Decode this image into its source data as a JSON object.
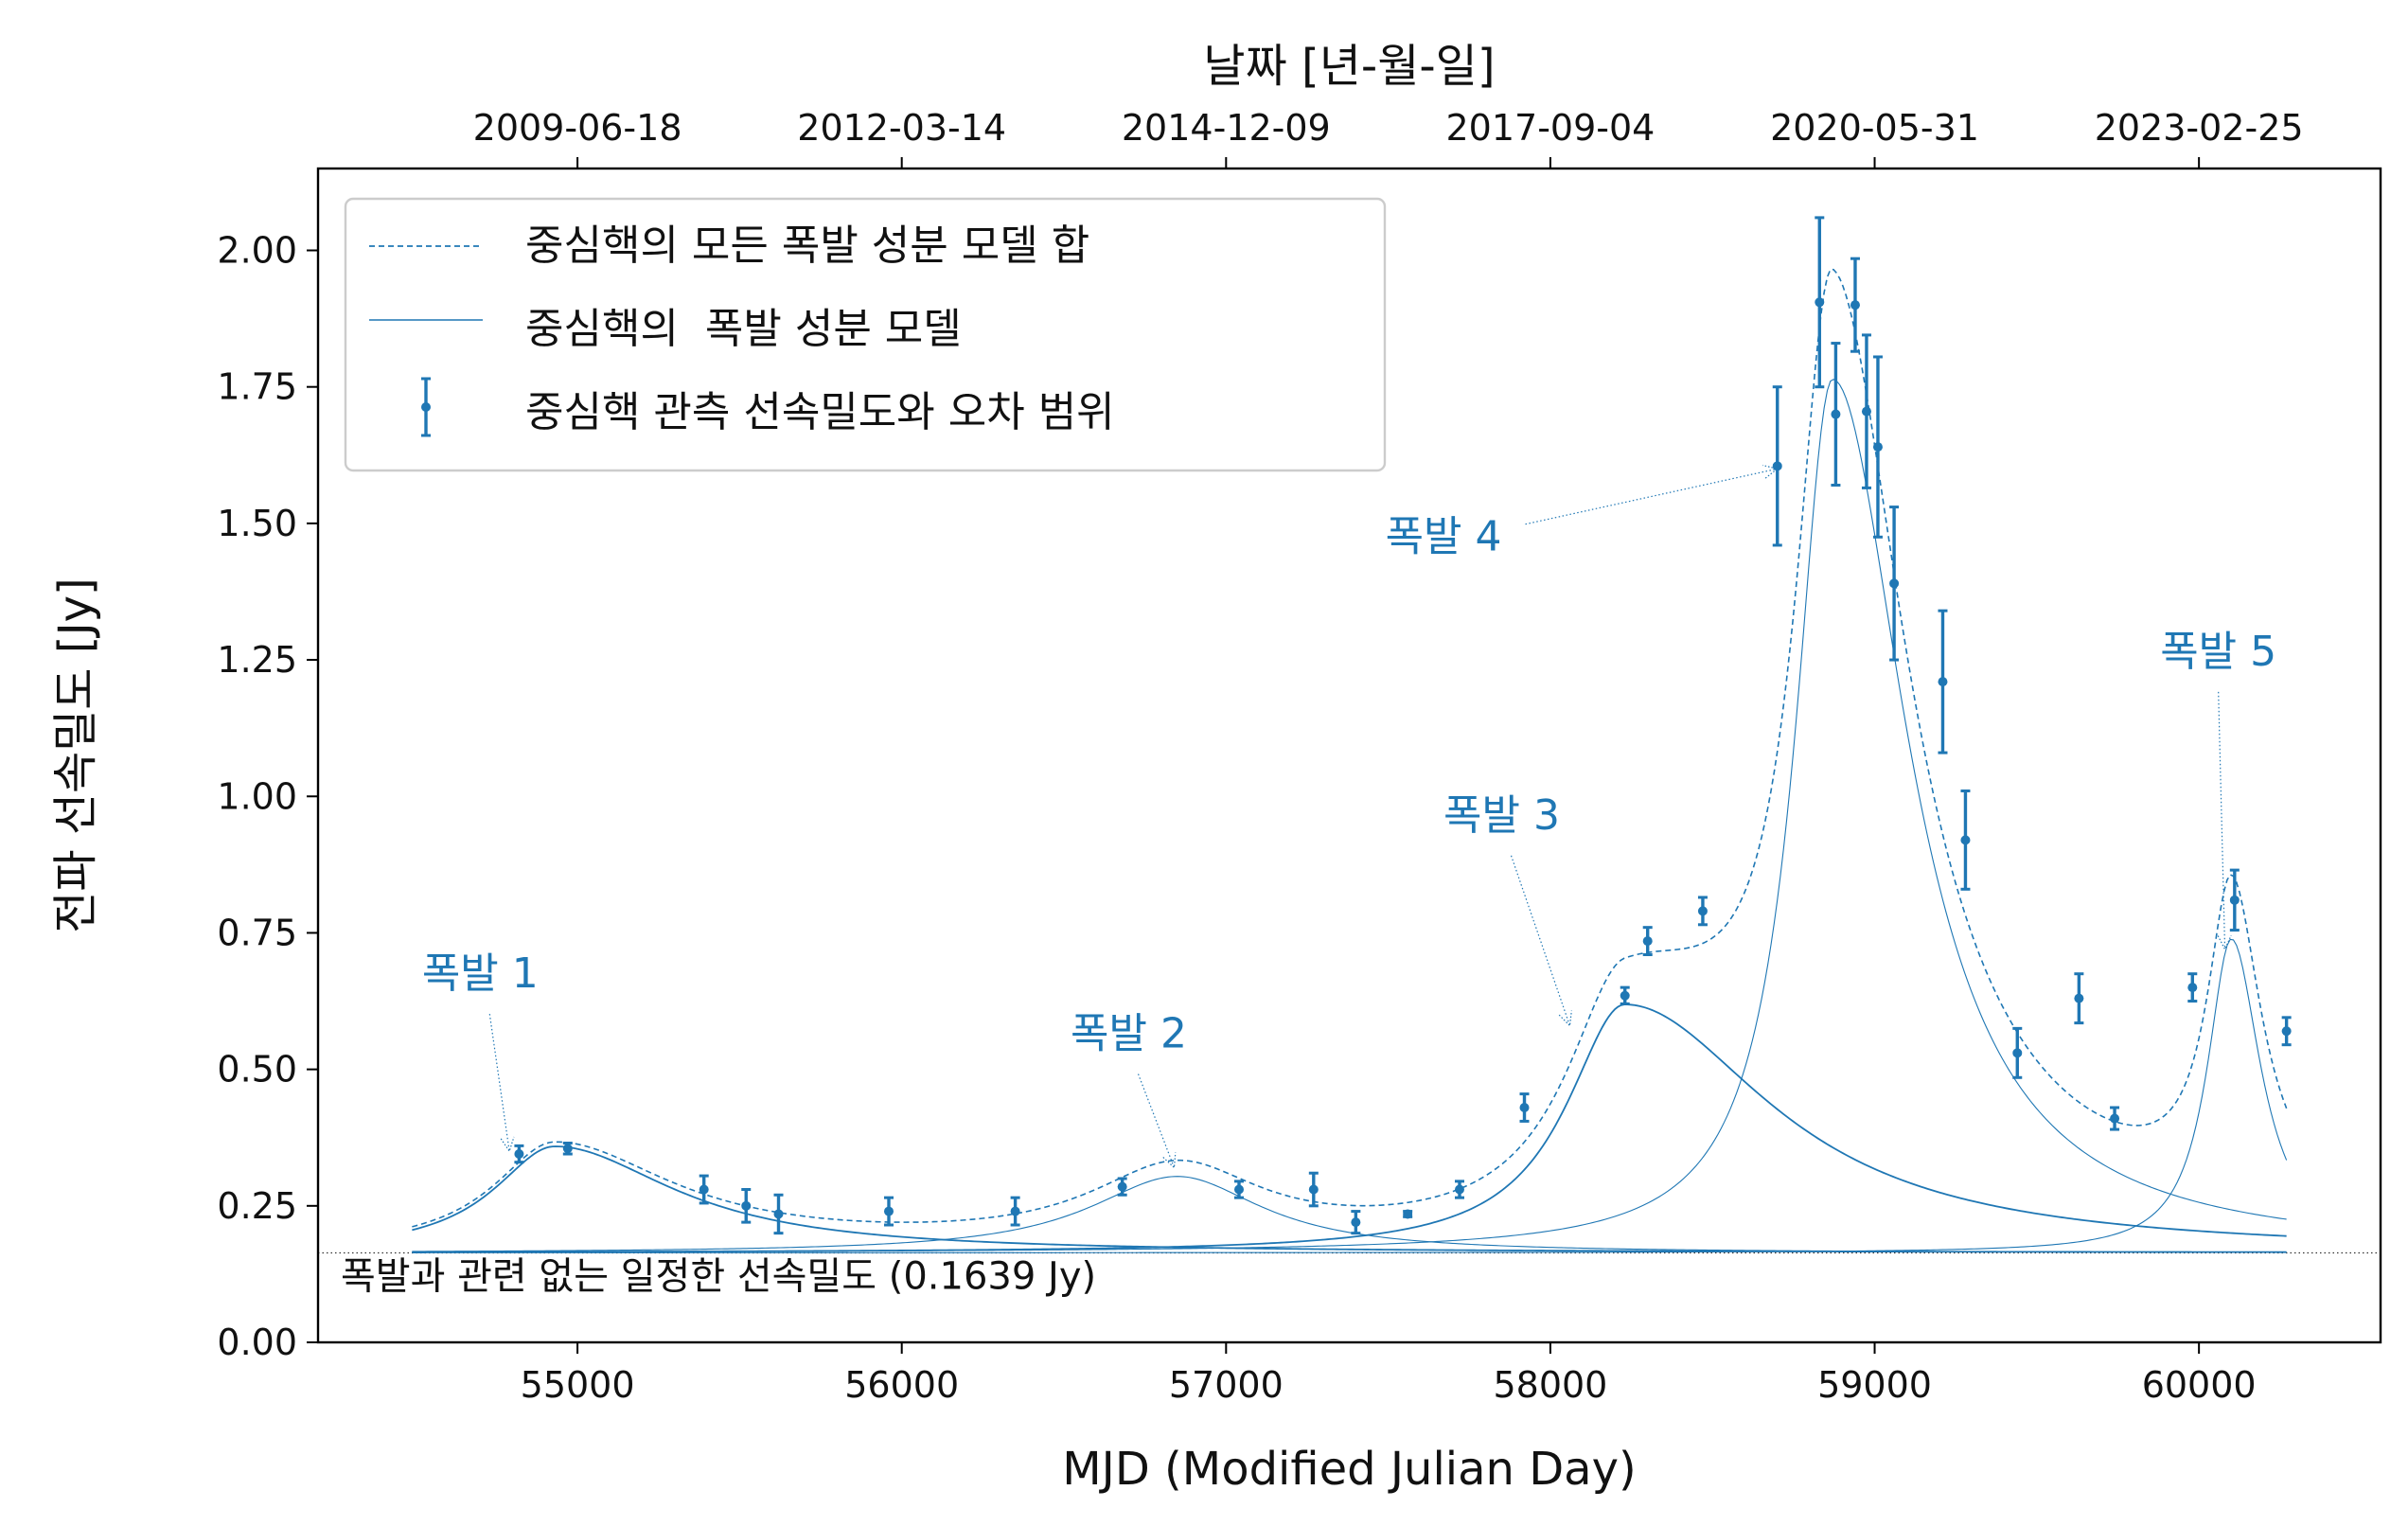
{
  "chart_data": {
    "type": "line",
    "xlabel": "MJD (Modified Julian Day)",
    "ylabel": "전파 선속밀도 [Jy]",
    "top_xlabel": "날짜 [년-월-일]",
    "xlim": [
      54200,
      60560
    ],
    "ylim": [
      0.0,
      2.15
    ],
    "x_ticks": [
      55000,
      56000,
      57000,
      58000,
      59000,
      60000
    ],
    "x_tick_labels": [
      "55000",
      "56000",
      "57000",
      "58000",
      "59000",
      "60000"
    ],
    "y_ticks": [
      0.0,
      0.25,
      0.5,
      0.75,
      1.0,
      1.25,
      1.5,
      1.75,
      2.0
    ],
    "y_tick_labels": [
      "0.00",
      "0.25",
      "0.50",
      "0.75",
      "1.00",
      "1.25",
      "1.50",
      "1.75",
      "2.00"
    ],
    "top_ticks": [
      55000,
      56000,
      57000,
      58000,
      59000,
      60000
    ],
    "top_tick_labels": [
      "2009-06-18",
      "2012-03-14",
      "2014-12-09",
      "2017-09-04",
      "2020-05-31",
      "2023-02-25"
    ],
    "grid": false,
    "legend": {
      "position": "top-left",
      "entries": [
        "중심핵의 모든 폭발 성분 모델 합",
        "중심핵의  폭발 성분 모델",
        "중심핵 관측 선속밀도와 오차 범위"
      ]
    },
    "baseline": {
      "value": 0.1639,
      "label": "폭발과 관련 없는 일정한 선속밀도 (0.1639 Jy)"
    },
    "flares": [
      {
        "name": "폭발 1",
        "amplitude": 0.195,
        "peak_mjd": 54930,
        "rise": 230,
        "decay": 450,
        "text_at": [
          54700,
          0.65
        ],
        "arrow_to": [
          54790,
          0.35
        ]
      },
      {
        "name": "폭발 2",
        "amplitude": 0.14,
        "peak_mjd": 56850,
        "rise": 330,
        "decay": 320,
        "text_at": [
          56700,
          0.54
        ],
        "arrow_to": [
          56840,
          0.32
        ]
      },
      {
        "name": "폭발 3",
        "amplitude": 0.455,
        "peak_mjd": 58230,
        "rise": 220,
        "decay": 550,
        "text_at": [
          57850,
          0.94
        ],
        "arrow_to": [
          58060,
          0.58
        ]
      },
      {
        "name": "폭발 4",
        "amplitude": 1.6,
        "peak_mjd": 58870,
        "rise": 140,
        "decay": 280,
        "text_at": [
          57850,
          1.45
        ],
        "arrow_to": [
          58700,
          1.6
        ]
      },
      {
        "name": "폭발 5",
        "amplitude": 0.575,
        "peak_mjd": 60100,
        "rise": 90,
        "decay": 110,
        "text_at": [
          60060,
          1.24
        ],
        "arrow_to": [
          60080,
          0.72
        ]
      }
    ],
    "model_range": [
      54490,
      60270
    ],
    "observations": [
      {
        "x": 54820,
        "y": 0.345,
        "err": 0.015
      },
      {
        "x": 54970,
        "y": 0.355,
        "err": 0.01
      },
      {
        "x": 55390,
        "y": 0.28,
        "err": 0.025
      },
      {
        "x": 55520,
        "y": 0.25,
        "err": 0.03
      },
      {
        "x": 55620,
        "y": 0.235,
        "err": 0.035
      },
      {
        "x": 55960,
        "y": 0.24,
        "err": 0.025
      },
      {
        "x": 56350,
        "y": 0.24,
        "err": 0.025
      },
      {
        "x": 56680,
        "y": 0.285,
        "err": 0.015
      },
      {
        "x": 57040,
        "y": 0.28,
        "err": 0.015
      },
      {
        "x": 57270,
        "y": 0.28,
        "err": 0.03
      },
      {
        "x": 57400,
        "y": 0.22,
        "err": 0.02
      },
      {
        "x": 57560,
        "y": 0.235,
        "err": 0.005
      },
      {
        "x": 57720,
        "y": 0.28,
        "err": 0.015
      },
      {
        "x": 57920,
        "y": 0.43,
        "err": 0.025
      },
      {
        "x": 58230,
        "y": 0.635,
        "err": 0.015
      },
      {
        "x": 58300,
        "y": 0.735,
        "err": 0.025
      },
      {
        "x": 58470,
        "y": 0.79,
        "err": 0.025
      },
      {
        "x": 58700,
        "y": 1.605,
        "err": 0.145
      },
      {
        "x": 58830,
        "y": 1.905,
        "err": 0.155
      },
      {
        "x": 58880,
        "y": 1.7,
        "err": 0.13
      },
      {
        "x": 58940,
        "y": 1.9,
        "err": 0.085
      },
      {
        "x": 58975,
        "y": 1.705,
        "err": 0.14
      },
      {
        "x": 59010,
        "y": 1.64,
        "err": 0.165
      },
      {
        "x": 59060,
        "y": 1.39,
        "err": 0.14
      },
      {
        "x": 59210,
        "y": 1.21,
        "err": 0.13
      },
      {
        "x": 59280,
        "y": 0.92,
        "err": 0.09
      },
      {
        "x": 59440,
        "y": 0.53,
        "err": 0.045
      },
      {
        "x": 59630,
        "y": 0.63,
        "err": 0.045
      },
      {
        "x": 59740,
        "y": 0.41,
        "err": 0.02
      },
      {
        "x": 59980,
        "y": 0.65,
        "err": 0.025
      },
      {
        "x": 60110,
        "y": 0.81,
        "err": 0.055
      },
      {
        "x": 60270,
        "y": 0.57,
        "err": 0.025
      }
    ],
    "colors": {
      "series": "#1f77b4",
      "text": "#111111",
      "axis": "#000000",
      "legend_border": "#cccccc"
    }
  }
}
